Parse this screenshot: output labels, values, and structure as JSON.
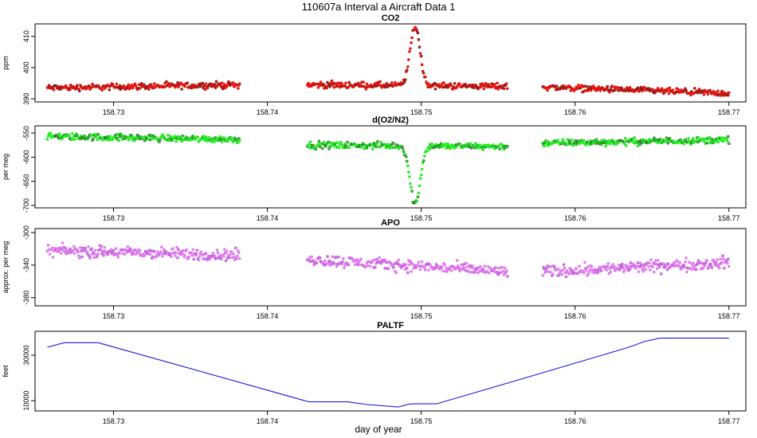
{
  "title": "110607a   Interval a Aircraft Data 1",
  "xlabel": "day of year",
  "chart_data": [
    {
      "type": "scatter",
      "title": "CO2",
      "ylabel": "ppm",
      "xlim": [
        158.7249,
        158.7711
      ],
      "ylim": [
        389,
        414
      ],
      "xticks": [
        "158.73",
        "158.74",
        "158.75",
        "158.76",
        "158.77"
      ],
      "yticks": [
        "390",
        "400",
        "410"
      ],
      "colors": {
        "fill": "#e8140f",
        "edge": "#1a1a1a"
      },
      "segments": [
        {
          "x": [
            158.7257,
            158.7382
          ],
          "y": [
            393.5,
            394.5
          ]
        },
        {
          "x": [
            158.7426,
            158.7556
          ],
          "y": [
            394.5,
            394.0
          ]
        },
        {
          "x": [
            158.7579,
            158.77
          ],
          "y": [
            393.8,
            391.7
          ]
        }
      ],
      "peak": {
        "x": 158.7496,
        "y": 413.5
      }
    },
    {
      "type": "scatter",
      "title": "d(O2/N2)",
      "ylabel": "per meg",
      "xlim": [
        158.7249,
        158.7711
      ],
      "ylim": [
        -705,
        -535
      ],
      "xticks": [
        "158.73",
        "158.74",
        "158.75",
        "158.76",
        "158.77"
      ],
      "yticks": [
        "-550",
        "-600",
        "-650",
        "-700"
      ],
      "colors": {
        "fill": "#22ee22",
        "edge": "#1a1a1a"
      },
      "segments": [
        {
          "x": [
            158.7257,
            158.7382
          ],
          "y": [
            -557,
            -563
          ]
        },
        {
          "x": [
            158.7426,
            158.7556
          ],
          "y": [
            -575,
            -578
          ]
        },
        {
          "x": [
            158.7579,
            158.77
          ],
          "y": [
            -571,
            -564
          ]
        }
      ],
      "dip": {
        "x": 158.7496,
        "y": -697
      }
    },
    {
      "type": "scatter",
      "title": "APO",
      "ylabel": "approx. per meg",
      "xlim": [
        158.7249,
        158.7711
      ],
      "ylim": [
        -390,
        -295
      ],
      "xticks": [
        "158.73",
        "158.74",
        "158.75",
        "158.76",
        "158.77"
      ],
      "yticks": [
        "-300",
        "-340",
        "-380"
      ],
      "colors": {
        "fill": "#e27cf0",
        "edge": "#9b30c8"
      },
      "segments": [
        {
          "x": [
            158.7257,
            158.7382
          ],
          "y": [
            -322,
            -328
          ]
        },
        {
          "x": [
            158.7426,
            158.7556
          ],
          "y": [
            -333,
            -348
          ]
        },
        {
          "x": [
            158.7579,
            158.77
          ],
          "y": [
            -348,
            -337
          ]
        }
      ]
    },
    {
      "type": "line",
      "title": "PALTF",
      "ylabel": "feet",
      "xlim": [
        158.7249,
        158.7711
      ],
      "ylim": [
        5500,
        40500
      ],
      "xticks": [
        "158.73",
        "158.74",
        "158.75",
        "158.76",
        "158.77"
      ],
      "yticks": [
        "10000",
        "30000"
      ],
      "colors": {
        "line": "#1a1adc"
      },
      "series": [
        {
          "x": [
            158.7257,
            158.7268,
            158.7278,
            158.729,
            158.7427,
            158.7452,
            158.7465,
            158.7485,
            158.7492,
            158.7496,
            158.751,
            158.7556,
            158.762,
            158.7635,
            158.7645,
            158.7655,
            158.77
          ],
          "y": [
            33500,
            35500,
            35500,
            35500,
            9500,
            9500,
            8300,
            7200,
            8500,
            8600,
            8600,
            17700,
            30500,
            33500,
            36000,
            37500,
            37500
          ]
        }
      ]
    }
  ]
}
